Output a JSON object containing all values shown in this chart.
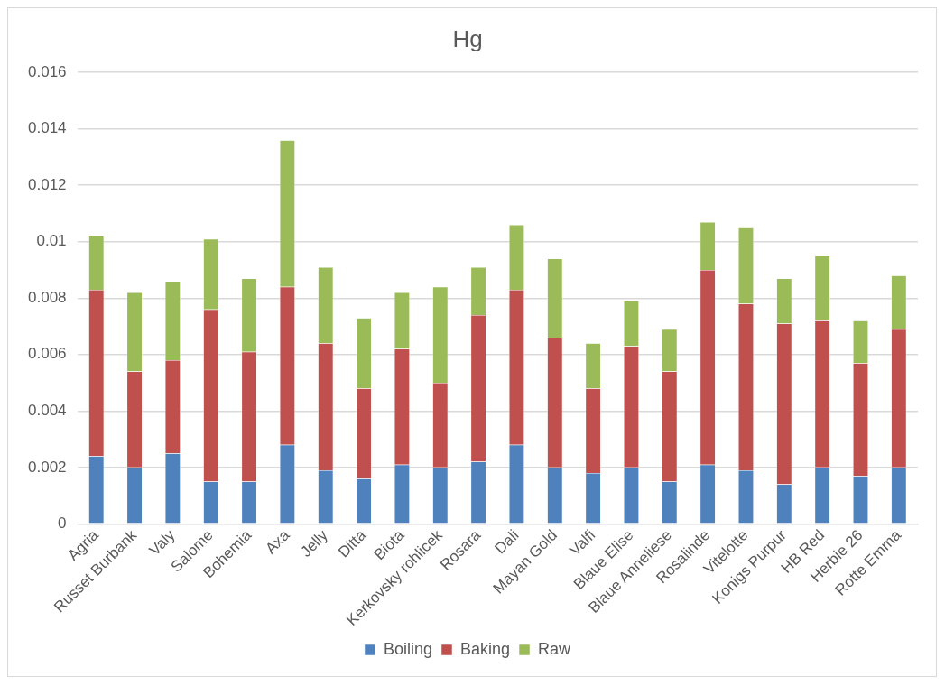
{
  "chart_data": {
    "type": "bar",
    "title": "Hg",
    "stacked": true,
    "categories": [
      "Agria",
      "Russet Burbank",
      "Valy",
      "Salome",
      "Bohemia",
      "Axa",
      "Jelly",
      "Ditta",
      "Biota",
      "Kerkovsky rohlicek",
      "Rosara",
      "Dali",
      "Mayan Gold",
      "Valfi",
      "Blaue Elise",
      "Blaue Anneliese",
      "Rosalinde",
      "Vitelotte",
      "Konigs Purpur",
      "HB Red",
      "Herbie 26",
      "Rotte Emma"
    ],
    "series": [
      {
        "name": "Boiling",
        "color": "#4f81bd",
        "values": [
          0.0024,
          0.002,
          0.0025,
          0.0015,
          0.0015,
          0.0028,
          0.0019,
          0.0016,
          0.0021,
          0.002,
          0.0022,
          0.0028,
          0.002,
          0.0018,
          0.002,
          0.0015,
          0.0021,
          0.0019,
          0.0014,
          0.002,
          0.0017,
          0.002
        ]
      },
      {
        "name": "Baking",
        "color": "#c0504d",
        "values": [
          0.0059,
          0.0034,
          0.0033,
          0.0061,
          0.0046,
          0.0056,
          0.0045,
          0.0032,
          0.0041,
          0.003,
          0.0052,
          0.0055,
          0.0046,
          0.003,
          0.0043,
          0.0039,
          0.0069,
          0.0059,
          0.0057,
          0.0052,
          0.004,
          0.0049
        ]
      },
      {
        "name": "Raw",
        "color": "#9bbb59",
        "values": [
          0.0019,
          0.0028,
          0.0028,
          0.0025,
          0.0026,
          0.0052,
          0.0027,
          0.0025,
          0.002,
          0.0034,
          0.0017,
          0.0023,
          0.0028,
          0.0016,
          0.0016,
          0.0015,
          0.0017,
          0.0027,
          0.0016,
          0.0023,
          0.0015,
          0.0019
        ]
      }
    ],
    "ylim": [
      0,
      0.016
    ],
    "yticks": [
      0,
      0.002,
      0.004,
      0.006,
      0.008,
      0.01,
      0.012,
      0.014,
      0.016
    ],
    "grid": "y",
    "legend": "bottom"
  }
}
